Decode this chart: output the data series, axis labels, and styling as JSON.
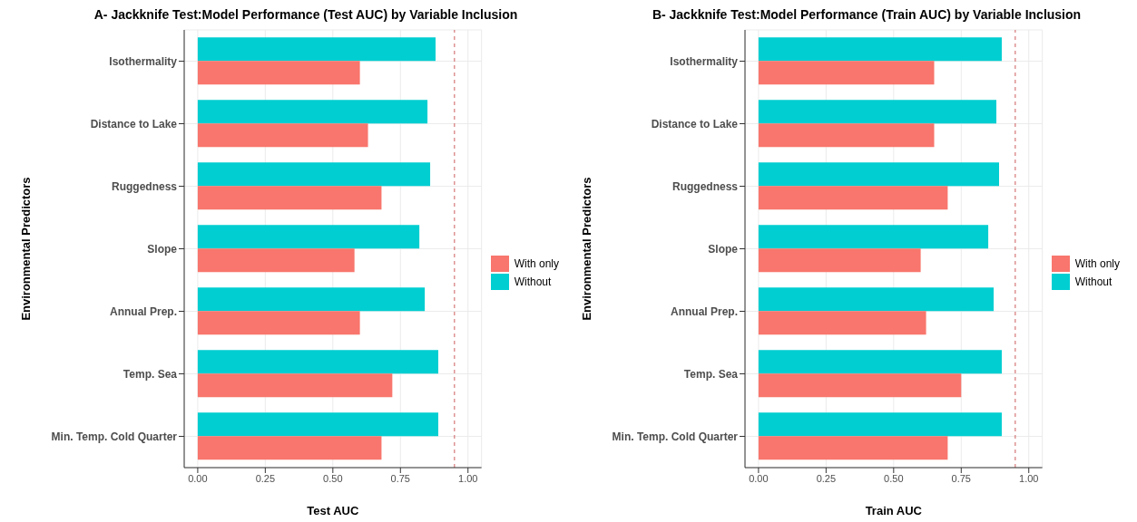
{
  "chart_data": [
    {
      "type": "bar",
      "orientation": "horizontal",
      "title": "A- Jackknife Test:Model Performance (Test AUC) by Variable Inclusion",
      "xlabel": "Test AUC",
      "ylabel": "Environmental Predictors",
      "categories": [
        "Isothermality",
        "Distance to Lake",
        "Ruggedness",
        "Slope",
        "Annual Prep.",
        "Temp. Sea",
        "Min. Temp. Cold Quarter"
      ],
      "series": [
        {
          "name": "With only",
          "color": "#f8766d",
          "values": [
            0.6,
            0.63,
            0.68,
            0.58,
            0.6,
            0.72,
            0.68
          ]
        },
        {
          "name": "Without",
          "color": "#00ced1",
          "values": [
            0.88,
            0.85,
            0.86,
            0.82,
            0.84,
            0.89,
            0.89
          ]
        }
      ],
      "xlim": [
        -0.05,
        1.05
      ],
      "xticks": [
        {
          "value": 0,
          "label": "0.00"
        },
        {
          "value": 0.25,
          "label": "0.25"
        },
        {
          "value": 0.5,
          "label": "0.50"
        },
        {
          "value": 0.75,
          "label": "0.75"
        },
        {
          "value": 1,
          "label": "1.00"
        }
      ],
      "ref_lines": [
        {
          "axis": "x",
          "value": 0.95,
          "color": "#cd5c5c",
          "line_style": "dashed"
        }
      ],
      "grid": true,
      "legend": "right"
    },
    {
      "type": "bar",
      "orientation": "horizontal",
      "title": "B- Jackknife Test:Model Performance (Train AUC) by Variable Inclusion",
      "xlabel": "Train AUC",
      "ylabel": "Environmental Predictors",
      "categories": [
        "Isothermality",
        "Distance to Lake",
        "Ruggedness",
        "Slope",
        "Annual Prep.",
        "Temp. Sea",
        "Min. Temp. Cold Quarter"
      ],
      "series": [
        {
          "name": "With only",
          "color": "#f8766d",
          "values": [
            0.65,
            0.65,
            0.7,
            0.6,
            0.62,
            0.75,
            0.7
          ]
        },
        {
          "name": "Without",
          "color": "#00ced1",
          "values": [
            0.9,
            0.88,
            0.89,
            0.85,
            0.87,
            0.9,
            0.9
          ]
        }
      ],
      "xlim": [
        -0.05,
        1.05
      ],
      "xticks": [
        {
          "value": 0,
          "label": "0.00"
        },
        {
          "value": 0.25,
          "label": "0.25"
        },
        {
          "value": 0.5,
          "label": "0.50"
        },
        {
          "value": 0.75,
          "label": "0.75"
        },
        {
          "value": 1,
          "label": "1.00"
        }
      ],
      "ref_lines": [
        {
          "axis": "x",
          "value": 0.95,
          "color": "#cd5c5c",
          "line_style": "dashed"
        }
      ],
      "grid": true,
      "legend": "right"
    }
  ]
}
